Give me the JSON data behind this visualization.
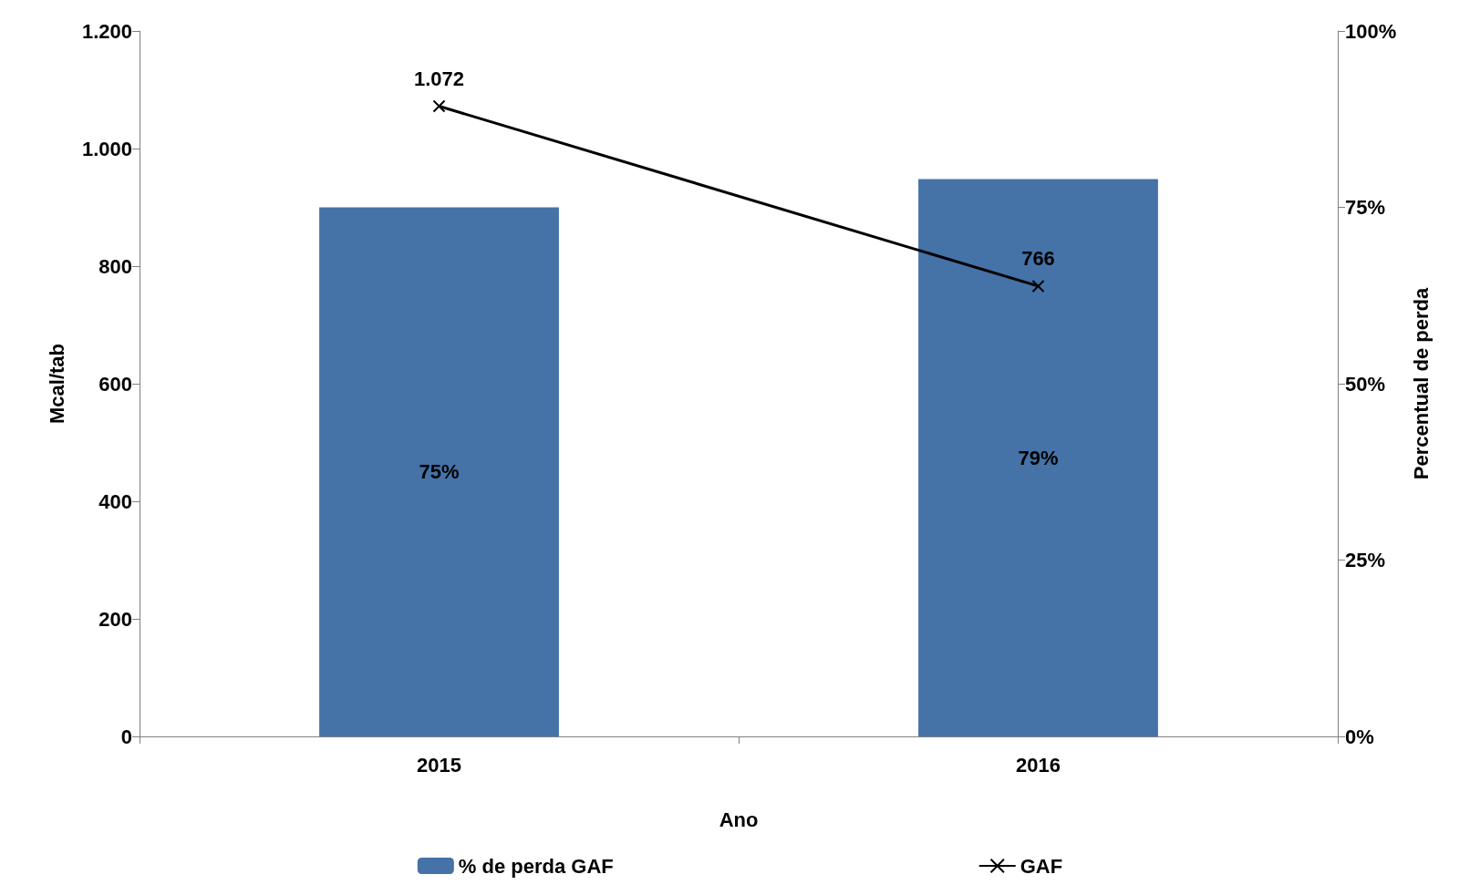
{
  "chart_data": {
    "type": "bar",
    "categories": [
      "2015",
      "2016"
    ],
    "xlabel": "Ano",
    "ylabel": "Mcal/tab",
    "y2label": "Percentual de perda",
    "series": [
      {
        "name": "% de perda GAF",
        "axis": "y2",
        "color": "#4572a7",
        "values": [
          75,
          79
        ],
        "value_labels": [
          "75%",
          "79%"
        ]
      },
      {
        "name": "GAF",
        "type": "line",
        "axis": "y",
        "color": "#000000",
        "marker": "cross",
        "values": [
          1072,
          766
        ],
        "value_labels": [
          "1.072",
          "766"
        ]
      }
    ],
    "ylim": [
      0,
      1200
    ],
    "yticks": [
      0,
      200,
      400,
      600,
      800,
      {
        "value": 1000,
        "label": "1.000"
      },
      {
        "value": 1200,
        "label": "1.200"
      }
    ],
    "y2lim": [
      0,
      100
    ],
    "y2ticks": [
      {
        "value": 0,
        "label": "0%"
      },
      {
        "value": 25,
        "label": "25%"
      },
      {
        "value": 50,
        "label": "50%"
      },
      {
        "value": 75,
        "label": "75%"
      },
      {
        "value": 100,
        "label": "100%"
      }
    ],
    "grid": false,
    "legend": "bottom"
  }
}
